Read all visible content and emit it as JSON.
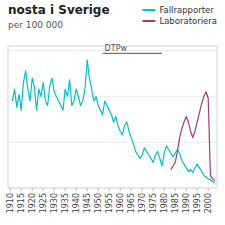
{
  "chart_data": {
    "type": "line",
    "title": "nosta i Sverige",
    "subtitle": "per 100 000",
    "series": [
      {
        "name": "Fallrapporter",
        "color": "#00c4c4",
        "x": [
          1911,
          1912,
          1913,
          1914,
          1915,
          1916,
          1917,
          1918,
          1919,
          1920,
          1921,
          1922,
          1923,
          1924,
          1925,
          1926,
          1927,
          1928,
          1929,
          1930,
          1931,
          1932,
          1933,
          1934,
          1935,
          1936,
          1937,
          1938,
          1939,
          1940,
          1941,
          1942,
          1943,
          1944,
          1945,
          1946,
          1947,
          1948,
          1949,
          1950,
          1951,
          1952,
          1953,
          1954,
          1955,
          1956,
          1957,
          1958,
          1959,
          1960,
          1961,
          1962,
          1963,
          1964,
          1965,
          1966,
          1967,
          1968,
          1969,
          1970,
          1971,
          1972,
          1973,
          1974,
          1975,
          1976,
          1977,
          1978,
          1979,
          1980,
          1981,
          1982,
          1983,
          1984,
          1985,
          1986,
          1987,
          1988,
          1989,
          1990,
          1991,
          1992,
          1993,
          1994,
          1995,
          1996,
          1997,
          1998,
          1999,
          2000,
          2001,
          2002,
          2003
        ],
        "values": [
          95,
          108,
          88,
          102,
          85,
          115,
          128,
          108,
          95,
          120,
          110,
          85,
          108,
          100,
          115,
          95,
          90,
          112,
          120,
          105,
          100,
          95,
          90,
          85,
          108,
          100,
          118,
          90,
          95,
          108,
          100,
          90,
          95,
          108,
          140,
          120,
          108,
          95,
          100,
          90,
          85,
          80,
          95,
          90,
          85,
          80,
          72,
          78,
          68,
          62,
          58,
          68,
          72,
          62,
          55,
          48,
          40,
          36,
          32,
          36,
          44,
          40,
          36,
          32,
          28,
          36,
          40,
          32,
          24,
          38,
          46,
          42,
          38,
          34,
          38,
          42,
          38,
          30,
          26,
          22,
          18,
          20,
          17,
          22,
          26,
          22,
          18,
          14,
          12,
          10,
          9,
          7,
          6
        ]
      },
      {
        "name": "Laboratoriera",
        "color": "#a0406a",
        "x": [
          1983,
          1984,
          1985,
          1986,
          1987,
          1988,
          1989,
          1990,
          1991,
          1992,
          1993,
          1994,
          1995,
          1996,
          1997,
          1998,
          1999,
          2000,
          2001,
          2002,
          2003
        ],
        "values": [
          20,
          24,
          28,
          40,
          55,
          65,
          72,
          78,
          72,
          62,
          55,
          62,
          72,
          82,
          92,
          100,
          105,
          98,
          14,
          10,
          8
        ]
      }
    ],
    "annotations": [
      {
        "text": "DTPw",
        "x": 1952,
        "x_end": 1979,
        "y": 147,
        "color": "#555555"
      }
    ],
    "xlim": [
      1909,
      2004
    ],
    "xticks": [
      1910,
      1915,
      1920,
      1925,
      1930,
      1935,
      1940,
      1945,
      1950,
      1955,
      1960,
      1965,
      1970,
      1975,
      1980,
      1985,
      1990,
      1995,
      2000
    ],
    "ylim": [
      0,
      155
    ],
    "yticks": [
      0,
      50,
      100,
      150
    ],
    "grid": true,
    "tick_labels": "x",
    "legend": "upper right"
  }
}
